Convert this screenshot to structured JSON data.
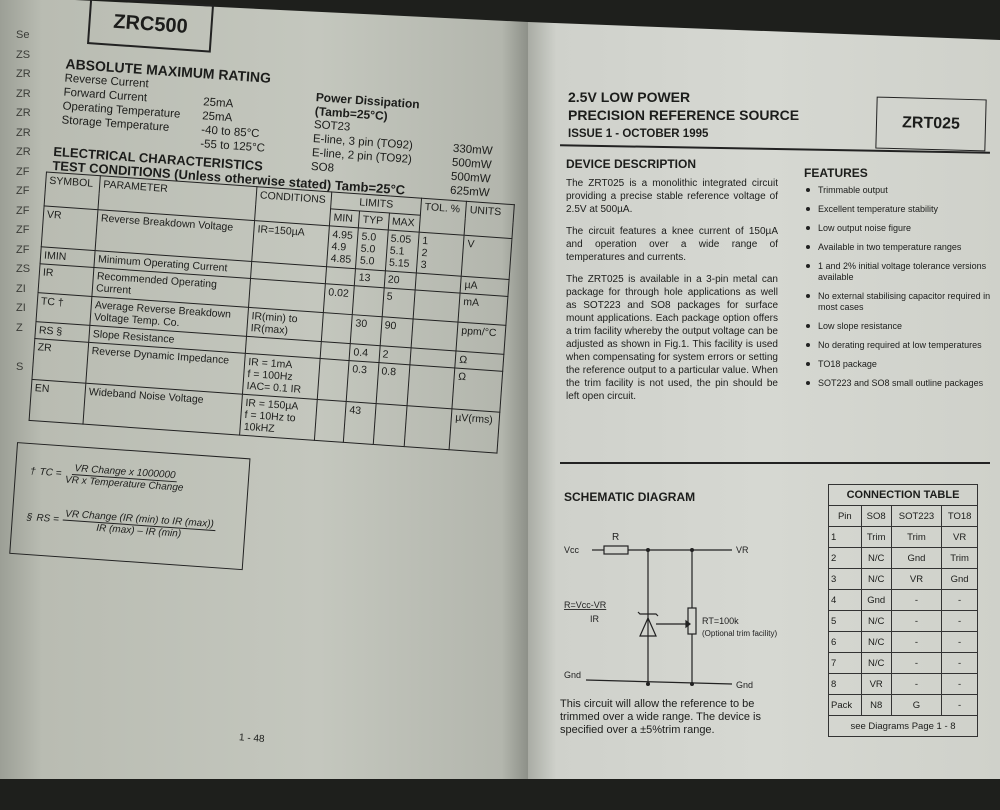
{
  "left_page": {
    "thumb_index": [
      "Se",
      "ZS",
      "ZR",
      "ZR",
      "ZR",
      "ZR",
      "ZR",
      "ZF",
      "ZF",
      "ZF",
      "ZF",
      "ZF",
      "ZS",
      "ZI",
      "ZI",
      "Z",
      "",
      "S"
    ],
    "part_number": "ZRC500",
    "abs_max": {
      "title": "ABSOLUTE MAXIMUM RATING",
      "items": [
        {
          "label": "Reverse Current",
          "value": ""
        },
        {
          "label": "Forward Current",
          "value": "25mA"
        },
        {
          "label": "Operating Temperature",
          "value": "25mA"
        },
        {
          "label": "Storage Temperature",
          "value": "-40 to 85°C"
        },
        {
          "label": "",
          "value": "-55 to 125°C"
        }
      ]
    },
    "power": {
      "title": "Power Dissipation (Tamb=25°C)",
      "items": [
        {
          "label": "SOT23",
          "value": ""
        },
        {
          "label": "E-line, 3 pin (TO92)",
          "value": "330mW"
        },
        {
          "label": "E-line, 2 pin (TO92)",
          "value": "500mW"
        },
        {
          "label": "SO8",
          "value": "500mW"
        },
        {
          "label": "",
          "value": "625mW"
        }
      ]
    },
    "ec_title_1": "ELECTRICAL CHARACTERISTICS",
    "ec_title_2": "TEST CONDITIONS (Unless otherwise stated) Tamb=25°C",
    "ec_table": {
      "headers": {
        "symbol": "SYMBOL",
        "parameter": "PARAMETER",
        "conditions": "CONDITIONS",
        "limits": "LIMITS",
        "min": "MIN",
        "typ": "TYP",
        "max": "MAX",
        "tol": "TOL. %",
        "units": "UNITS"
      },
      "rows": [
        {
          "symbol": "VR",
          "parameter": "Reverse Breakdown Voltage",
          "conditions": "IR=150µA",
          "min": "4.95\n4.9\n4.85",
          "typ": "5.0\n5.0\n5.0",
          "max": "5.05\n5.1\n5.15",
          "tol": "1\n2\n3",
          "units": "V"
        },
        {
          "symbol": "IMIN",
          "parameter": "Minimum Operating Current",
          "conditions": "",
          "min": "",
          "typ": "13",
          "max": "20",
          "tol": "",
          "units": "µA"
        },
        {
          "symbol": "IR",
          "parameter": "Recommended Operating Current",
          "conditions": "",
          "min": "0.02",
          "typ": "",
          "max": "5",
          "tol": "",
          "units": "mA"
        },
        {
          "symbol": "TC †",
          "parameter": "Average Reverse Breakdown Voltage Temp. Co.",
          "conditions": "IR(min) to IR(max)",
          "min": "",
          "typ": "30",
          "max": "90",
          "tol": "",
          "units": "ppm/°C"
        },
        {
          "symbol": "RS §",
          "parameter": "Slope Resistance",
          "conditions": "",
          "min": "",
          "typ": "0.4",
          "max": "2",
          "tol": "",
          "units": "Ω"
        },
        {
          "symbol": "ZR",
          "parameter": "Reverse Dynamic Impedance",
          "conditions": "IR = 1mA\nf = 100Hz\nIAC= 0.1 IR",
          "min": "",
          "typ": "0.3",
          "max": "0.8",
          "tol": "",
          "units": "Ω"
        },
        {
          "symbol": "EN",
          "parameter": "Wideband Noise Voltage",
          "conditions": "IR = 150µA\nf = 10Hz to\n10kHZ",
          "min": "",
          "typ": "43",
          "max": "",
          "tol": "",
          "units": "µV(rms)"
        }
      ]
    },
    "formulas": {
      "tc_mark": "†",
      "tc_lhs": "TC =",
      "tc_num": "VR Change x 1000000",
      "tc_den": "VR x Temperature  Change",
      "rs_mark": "§",
      "rs_lhs": "RS =",
      "rs_num": "VR Change (IR (min) to IR (max))",
      "rs_den": "IR (max) – IR (min)"
    },
    "page_number": "1 - 48"
  },
  "right_page": {
    "title_1": "2.5V LOW POWER",
    "title_2": "PRECISION REFERENCE SOURCE",
    "issue": "ISSUE 1 - OCTOBER 1995",
    "part_number": "ZRT025",
    "description": {
      "title": "DEVICE DESCRIPTION",
      "paragraphs": [
        "The ZRT025 is a monolithic integrated circuit providing a precise stable reference voltage of 2.5V at 500µA.",
        "The circuit features a knee current of 150µA and operation over a wide range of temperatures and currents.",
        "The ZRT025 is available in a 3-pin metal can package for through hole applications as well as SOT223 and SO8 packages for surface mount applications. Each package option offers a trim facility whereby the output voltage can be adjusted as shown in Fig.1. This facility is used when compensating for system errors or setting the reference output to a particular value. When the trim facility is not used, the pin should be left open circuit."
      ]
    },
    "features": {
      "title": "FEATURES",
      "items": [
        "Trimmable output",
        "Excellent temperature stability",
        "Low output noise figure",
        "Available in two temperature ranges",
        "1 and 2% initial voltage tolerance versions available",
        "No external stabilising capacitor required in most cases",
        "Low slope resistance",
        "No derating required at low temperatures",
        "TO18 package",
        "SOT223 and SO8 small outline packages"
      ]
    },
    "schematic": {
      "title": "SCHEMATIC DIAGRAM",
      "vcc": "Vcc",
      "r": "R",
      "vr": "VR",
      "formula_num": "R=Vcc-VR",
      "formula_den": "IR",
      "rt": "RT=100k",
      "rt_note": "(Optional trim facility)",
      "gnd_left": "Gnd",
      "gnd_right": "Gnd",
      "note": "This circuit will allow the reference to be trimmed over a wide range. The device is specified over a ±5%trim range."
    },
    "connection_table": {
      "title": "CONNECTION TABLE",
      "headers": [
        "Pin",
        "SO8",
        "SOT223",
        "TO18"
      ],
      "rows": [
        [
          "1",
          "Trim",
          "Trim",
          "VR"
        ],
        [
          "2",
          "N/C",
          "Gnd",
          "Trim"
        ],
        [
          "3",
          "N/C",
          "VR",
          "Gnd"
        ],
        [
          "4",
          "Gnd",
          "-",
          "-"
        ],
        [
          "5",
          "N/C",
          "-",
          "-"
        ],
        [
          "6",
          "N/C",
          "-",
          "-"
        ],
        [
          "7",
          "N/C",
          "-",
          "-"
        ],
        [
          "8",
          "VR",
          "-",
          "-"
        ],
        [
          "Pack",
          "N8",
          "G",
          "-"
        ]
      ],
      "footer": "see Diagrams Page 1 - 8"
    }
  }
}
